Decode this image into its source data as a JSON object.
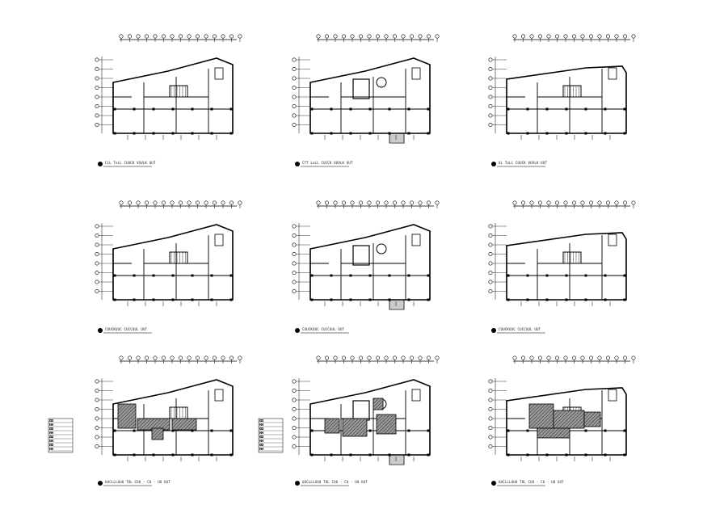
{
  "sheet": {
    "background": "#ffffff",
    "line_color": "#000000",
    "hatch_color": "#444444"
  },
  "panels": [
    {
      "id": "p1",
      "caption": "CLL ToLL CUUCK VUVLK UUT",
      "variant": "A",
      "hatched": false,
      "legend": false
    },
    {
      "id": "p2",
      "caption": "CTT LoLL CUCCK UUVLK UUT",
      "variant": "B",
      "hatched": false,
      "legend": false
    },
    {
      "id": "p3",
      "caption": "UL ToLL CUUCK VUVLK UUT",
      "variant": "C",
      "hatched": false,
      "legend": false
    },
    {
      "id": "p4",
      "caption": "CUUCKUUC CUCCUUL UUT",
      "variant": "A",
      "hatched": false,
      "legend": false
    },
    {
      "id": "p5",
      "caption": "CUUCKUUC CUCCUUL UUT",
      "variant": "B",
      "hatched": false,
      "legend": false
    },
    {
      "id": "p6",
      "caption": "CUUCKUUC CUCCUUL UUT",
      "variant": "C",
      "hatched": false,
      "legend": false
    },
    {
      "id": "p7",
      "caption": "UUCLLLUUU TUL CUU - CU - UU UUT",
      "variant": "A",
      "hatched": true,
      "legend": true
    },
    {
      "id": "p8",
      "caption": "UUCLLLUUU TUL CUU - CU - UU UUT",
      "variant": "B",
      "hatched": true,
      "legend": true
    },
    {
      "id": "p9",
      "caption": "UUCLLLUUU TUL CUU - CU - UU UUT",
      "variant": "C",
      "hatched": true,
      "legend": false
    }
  ]
}
